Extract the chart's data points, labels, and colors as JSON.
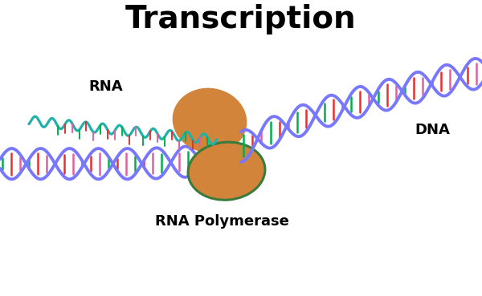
{
  "title": "Transcription",
  "title_fontsize": 28,
  "title_fontweight": "bold",
  "label_rna": "RNA",
  "label_dna": "DNA",
  "label_polymerase": "RNA Polymerase",
  "background_color": "#ffffff",
  "dna_color": "#7878ff",
  "rna_color": "#20b2aa",
  "bar_color_green": "#00b050",
  "bar_color_red": "#e83030",
  "bar_color_pink": "#e060a0",
  "polymerase_fill": "#d2843a",
  "polymerase_edge": "#3a7a3a",
  "text_color": "#000000",
  "label_fontsize": 13,
  "label_fontweight": "bold",
  "dna_amplitude": 0.32,
  "dna_period": 1.2,
  "rna_amplitude": 0.1,
  "rna_period": 0.35
}
